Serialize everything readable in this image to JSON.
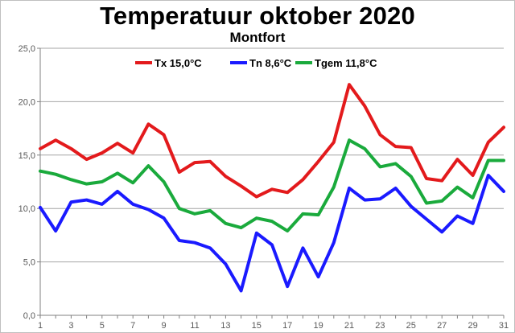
{
  "chart_data": {
    "type": "line",
    "title": "Temperatuur oktober 2020",
    "subtitle": "Montfort",
    "xlabel": "",
    "ylabel": "",
    "xlim": [
      1,
      31
    ],
    "ylim": [
      0,
      25
    ],
    "y_tick_labels": [
      "0,0",
      "5,0",
      "10,0",
      "15,0",
      "20,0",
      "25,0"
    ],
    "y_tick_values": [
      0,
      5,
      10,
      15,
      20,
      25
    ],
    "x_tick_labels": [
      "1",
      "3",
      "5",
      "7",
      "9",
      "11",
      "13",
      "15",
      "17",
      "19",
      "21",
      "23",
      "25",
      "27",
      "29",
      "31"
    ],
    "x": [
      1,
      2,
      3,
      4,
      5,
      6,
      7,
      8,
      9,
      10,
      11,
      12,
      13,
      14,
      15,
      16,
      17,
      18,
      19,
      20,
      21,
      22,
      23,
      24,
      25,
      26,
      27,
      28,
      29,
      30,
      31
    ],
    "grid": true,
    "legend_position": "top",
    "series": [
      {
        "name": "Tx 15,0°C",
        "color": "#e31a1c",
        "values": [
          15.6,
          16.4,
          15.6,
          14.6,
          15.2,
          16.1,
          15.2,
          17.9,
          16.9,
          13.4,
          14.3,
          14.4,
          13.0,
          12.1,
          11.1,
          11.8,
          11.5,
          12.7,
          14.4,
          16.2,
          21.6,
          19.6,
          16.9,
          15.8,
          15.7,
          12.8,
          12.6,
          14.6,
          13.1,
          16.2,
          17.6
        ]
      },
      {
        "name": "Tn 8,6°C",
        "color": "#1a1aff",
        "values": [
          10.1,
          7.9,
          10.6,
          10.8,
          10.4,
          11.6,
          10.4,
          9.9,
          9.1,
          7.0,
          6.8,
          6.3,
          4.8,
          2.3,
          7.7,
          6.6,
          2.7,
          6.3,
          3.6,
          6.8,
          11.9,
          10.8,
          10.9,
          11.9,
          10.2,
          9.0,
          7.8,
          9.3,
          8.6,
          13.1,
          11.6
        ]
      },
      {
        "name": "Tgem 11,8°C",
        "color": "#1aaa3c",
        "values": [
          13.5,
          13.2,
          12.7,
          12.3,
          12.5,
          13.3,
          12.4,
          14.0,
          12.5,
          10.0,
          9.5,
          9.8,
          8.6,
          8.2,
          9.1,
          8.8,
          7.9,
          9.5,
          9.4,
          12.0,
          16.4,
          15.6,
          13.9,
          14.2,
          13.0,
          10.5,
          10.7,
          12.0,
          11.0,
          14.5,
          14.5
        ]
      }
    ]
  }
}
